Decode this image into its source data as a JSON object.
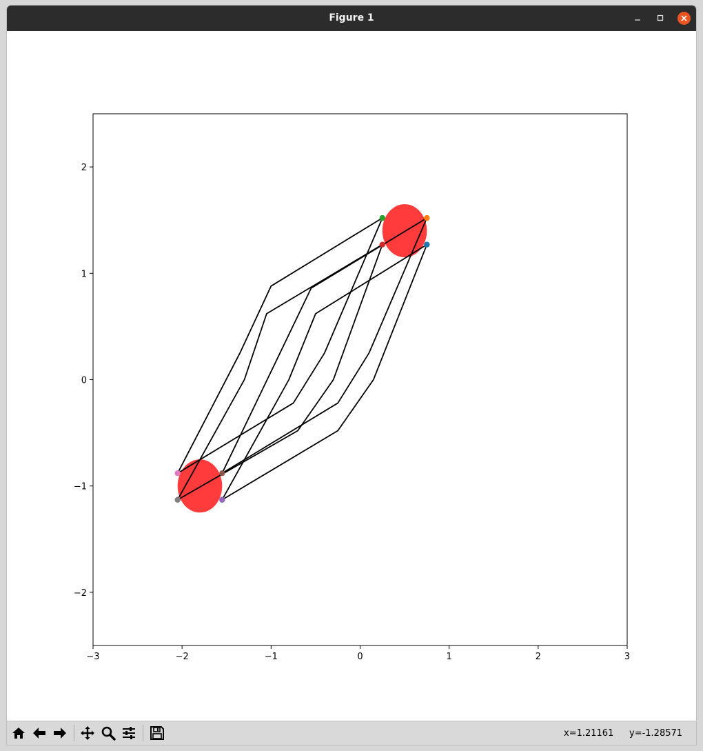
{
  "window": {
    "title": "Figure 1"
  },
  "icons": {
    "minimize": "minimize-icon",
    "maximize": "maximize-icon",
    "close": "close-icon",
    "home": "home-icon",
    "back": "arrow-left-icon",
    "forward": "arrow-right-icon",
    "pan": "move-icon",
    "zoom": "magnifier-icon",
    "configure": "sliders-icon",
    "save": "floppy-disk-icon"
  },
  "colors": {
    "titlebar": "#2c2c2c",
    "close_button": "#e95420",
    "region_fill": "#ff2020",
    "path_line": "#000000"
  },
  "status": {
    "x_readout": "x=1.21161",
    "y_readout": "y=-1.28571"
  },
  "chart_data": {
    "type": "scatter",
    "title": "",
    "xlabel": "",
    "ylabel": "",
    "xlim": [
      -3,
      3
    ],
    "ylim": [
      -2.5,
      2.5
    ],
    "xticks": [
      -3,
      -2,
      -1,
      0,
      1,
      2,
      3
    ],
    "yticks": [
      -2,
      -1,
      0,
      1,
      2
    ],
    "xtick_labels": [
      "−3",
      "−2",
      "−1",
      "0",
      "1",
      "2",
      "3"
    ],
    "ytick_labels": [
      "−2",
      "−1",
      "0",
      "1",
      "2"
    ],
    "grid": false,
    "regions": [
      {
        "cx": 0.5,
        "cy": 1.4,
        "r": 0.25,
        "color": "#ff2020",
        "opacity": 0.88
      },
      {
        "cx": -1.8,
        "cy": -1.0,
        "r": 0.25,
        "color": "#ff2020",
        "opacity": 0.88
      }
    ],
    "points": [
      {
        "x": 0.25,
        "y": 1.52,
        "color": "#2ca02c"
      },
      {
        "x": 0.75,
        "y": 1.52,
        "color": "#ff7f0e"
      },
      {
        "x": 0.75,
        "y": 1.27,
        "color": "#1f77b4"
      },
      {
        "x": 0.25,
        "y": 1.27,
        "color": "#d62728"
      },
      {
        "x": -2.05,
        "y": -0.88,
        "color": "#e377c2"
      },
      {
        "x": -1.55,
        "y": -0.88,
        "color": "#8c564b"
      },
      {
        "x": -2.05,
        "y": -1.13,
        "color": "#7f7f7f"
      },
      {
        "x": -1.55,
        "y": -1.13,
        "color": "#9467bd"
      }
    ],
    "paths": [
      [
        [
          0.25,
          1.52
        ],
        [
          -1.0,
          0.88
        ],
        [
          -1.35,
          0.25
        ],
        [
          -2.05,
          -0.88
        ]
      ],
      [
        [
          0.75,
          1.52
        ],
        [
          -0.55,
          0.86
        ],
        [
          -0.9,
          0.25
        ],
        [
          -1.55,
          -0.88
        ]
      ],
      [
        [
          0.75,
          1.27
        ],
        [
          -0.5,
          0.62
        ],
        [
          -0.8,
          0.0
        ],
        [
          -1.55,
          -1.13
        ]
      ],
      [
        [
          0.25,
          1.27
        ],
        [
          -1.05,
          0.62
        ],
        [
          -1.3,
          0.0
        ],
        [
          -2.05,
          -1.13
        ]
      ],
      [
        [
          0.25,
          1.52
        ],
        [
          -0.4,
          0.25
        ],
        [
          -0.75,
          -0.22
        ],
        [
          -2.05,
          -0.88
        ]
      ],
      [
        [
          0.75,
          1.52
        ],
        [
          0.1,
          0.25
        ],
        [
          -0.25,
          -0.22
        ],
        [
          -1.55,
          -0.88
        ]
      ],
      [
        [
          0.75,
          1.27
        ],
        [
          0.15,
          0.0
        ],
        [
          -0.25,
          -0.48
        ],
        [
          -1.55,
          -1.13
        ]
      ],
      [
        [
          0.25,
          1.27
        ],
        [
          -0.3,
          0.0
        ],
        [
          -0.7,
          -0.48
        ],
        [
          -2.05,
          -1.13
        ]
      ]
    ]
  }
}
